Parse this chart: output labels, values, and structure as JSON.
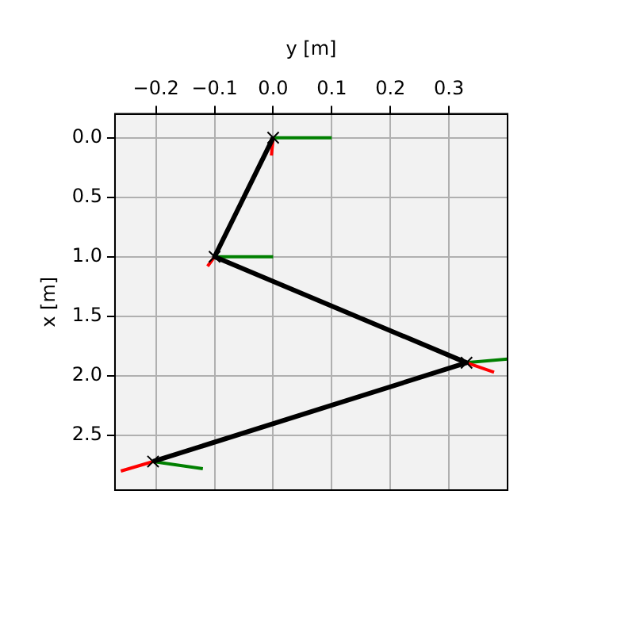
{
  "chart_data": {
    "type": "line",
    "xlabel": "y [m]",
    "ylabel": "x [m]",
    "xlim": [
      -0.27,
      0.4
    ],
    "ylim": [
      2.96,
      -0.2
    ],
    "xticks": [
      {
        "value": -0.2,
        "label": "−0.2"
      },
      {
        "value": -0.1,
        "label": "−0.1"
      },
      {
        "value": 0,
        "label": "0.0"
      },
      0.1,
      0.2,
      0.3
    ],
    "yticks": [
      {
        "value": 0,
        "label": "0.0"
      },
      0.5,
      {
        "value": 1,
        "label": "1.0"
      },
      1.5,
      {
        "value": 2,
        "label": "2.0"
      },
      2.5
    ],
    "grid": true,
    "legend": false,
    "series": [
      {
        "color": "#000000",
        "marker": "cross",
        "x": [
          0,
          -0.1,
          0.33,
          -0.205
        ],
        "values": [
          0,
          1.0,
          1.89,
          2.72
        ]
      },
      {
        "color": "#ff0000",
        "marker": "none",
        "x": [
          0,
          -0.003,
          null,
          -0.1,
          -0.112,
          null,
          0.33,
          0.377,
          null,
          -0.205,
          -0.26
        ],
        "values": [
          0,
          0.15,
          null,
          1.0,
          1.08,
          null,
          1.89,
          1.97,
          null,
          2.72,
          2.8
        ]
      },
      {
        "color": "#008000",
        "marker": "none",
        "x": [
          0,
          0.1,
          null,
          -0.1,
          0.0,
          null,
          0.33,
          0.4,
          null,
          -0.205,
          -0.12
        ],
        "values": [
          0,
          0.0,
          null,
          1.0,
          1.0,
          null,
          1.89,
          1.86,
          null,
          2.72,
          2.78
        ]
      }
    ]
  }
}
